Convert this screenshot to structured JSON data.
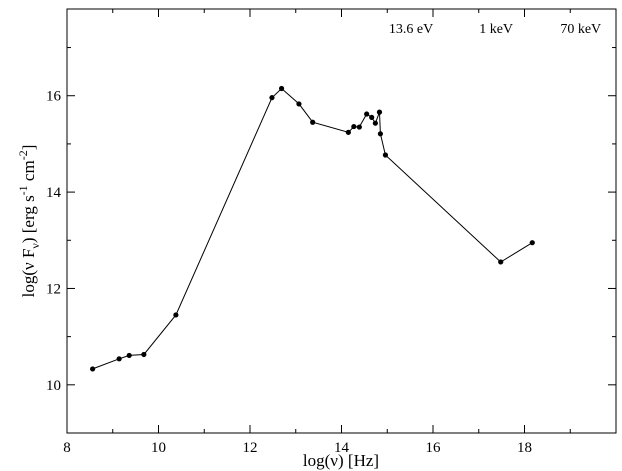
{
  "chart_data": {
    "type": "line",
    "title": "",
    "xlabel": "log(ν) [Hz]",
    "ylabel": {
      "main": "log(ν F",
      "sub": "ν",
      "mid": ") [erg s",
      "sup1": "-1",
      "mid2": " cm",
      "sup2": "-2",
      "end": "]"
    },
    "xlim": [
      8,
      20
    ],
    "ylim": [
      9,
      17.8
    ],
    "xticks": [
      "8",
      "10",
      "12",
      "14",
      "16",
      "18"
    ],
    "yticks": [
      "10",
      "12",
      "14",
      "16"
    ],
    "top_energy_labels": [
      {
        "text": "13.6 eV",
        "x": 15.52
      },
      {
        "text": "1 keV",
        "x": 17.38
      },
      {
        "text": "70 keV",
        "x": 19.23
      }
    ],
    "grid": false,
    "series": [
      {
        "x": [
          8.56,
          9.14,
          9.36,
          9.68,
          10.38,
          12.48,
          12.69,
          13.07,
          13.37,
          14.15,
          14.27,
          14.39,
          14.55,
          14.66,
          14.74,
          14.83,
          14.85,
          14.96,
          17.48,
          18.17
        ],
        "y": [
          10.33,
          10.54,
          10.61,
          10.63,
          11.45,
          15.96,
          16.15,
          15.83,
          15.45,
          15.24,
          15.36,
          15.35,
          15.62,
          15.55,
          15.43,
          15.66,
          15.21,
          14.77,
          12.55,
          12.95
        ]
      }
    ]
  }
}
